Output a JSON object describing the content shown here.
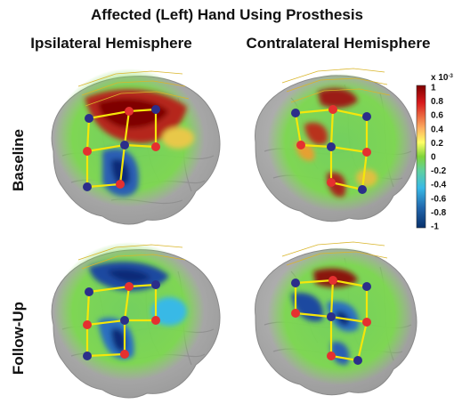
{
  "title": "Affected (Left) Hand Using Prosthesis",
  "column_headers": [
    "Ipsilateral Hemisphere",
    "Contralateral Hemisphere"
  ],
  "row_labels": [
    "Baseline",
    "Follow-Up"
  ],
  "colorbar": {
    "exponent": "x 10",
    "exponent_power": "-3",
    "ticks": [
      "1",
      "0.8",
      "0.6",
      "0.4",
      "0.2",
      "0",
      "-0.2",
      "-0.4",
      "-0.6",
      "-0.8",
      "-1"
    ],
    "max": 1,
    "min": -1,
    "colors": [
      "#7f0000",
      "#d7191c",
      "#fdae61",
      "#ffff66",
      "#7fd43a",
      "#5fd0a0",
      "#39b9e6",
      "#2166ac",
      "#08306b"
    ]
  },
  "colors": {
    "brain": "#b8b8b8",
    "gyri": "#8e8e8e",
    "optode_source": "#e53030",
    "optode_detector": "#2b2e8a",
    "channel": "#f5e60a"
  },
  "panels": [
    {
      "name": "baseline-ipsilateral",
      "activation": "strong-positive-upper",
      "level": 0.9
    },
    {
      "name": "baseline-contralateral",
      "activation": "moderate-positive",
      "level": 0.6
    },
    {
      "name": "followup-ipsilateral",
      "activation": "negative",
      "level": -0.6
    },
    {
      "name": "followup-contralateral",
      "activation": "mixed-negative",
      "level": -0.5
    }
  ]
}
